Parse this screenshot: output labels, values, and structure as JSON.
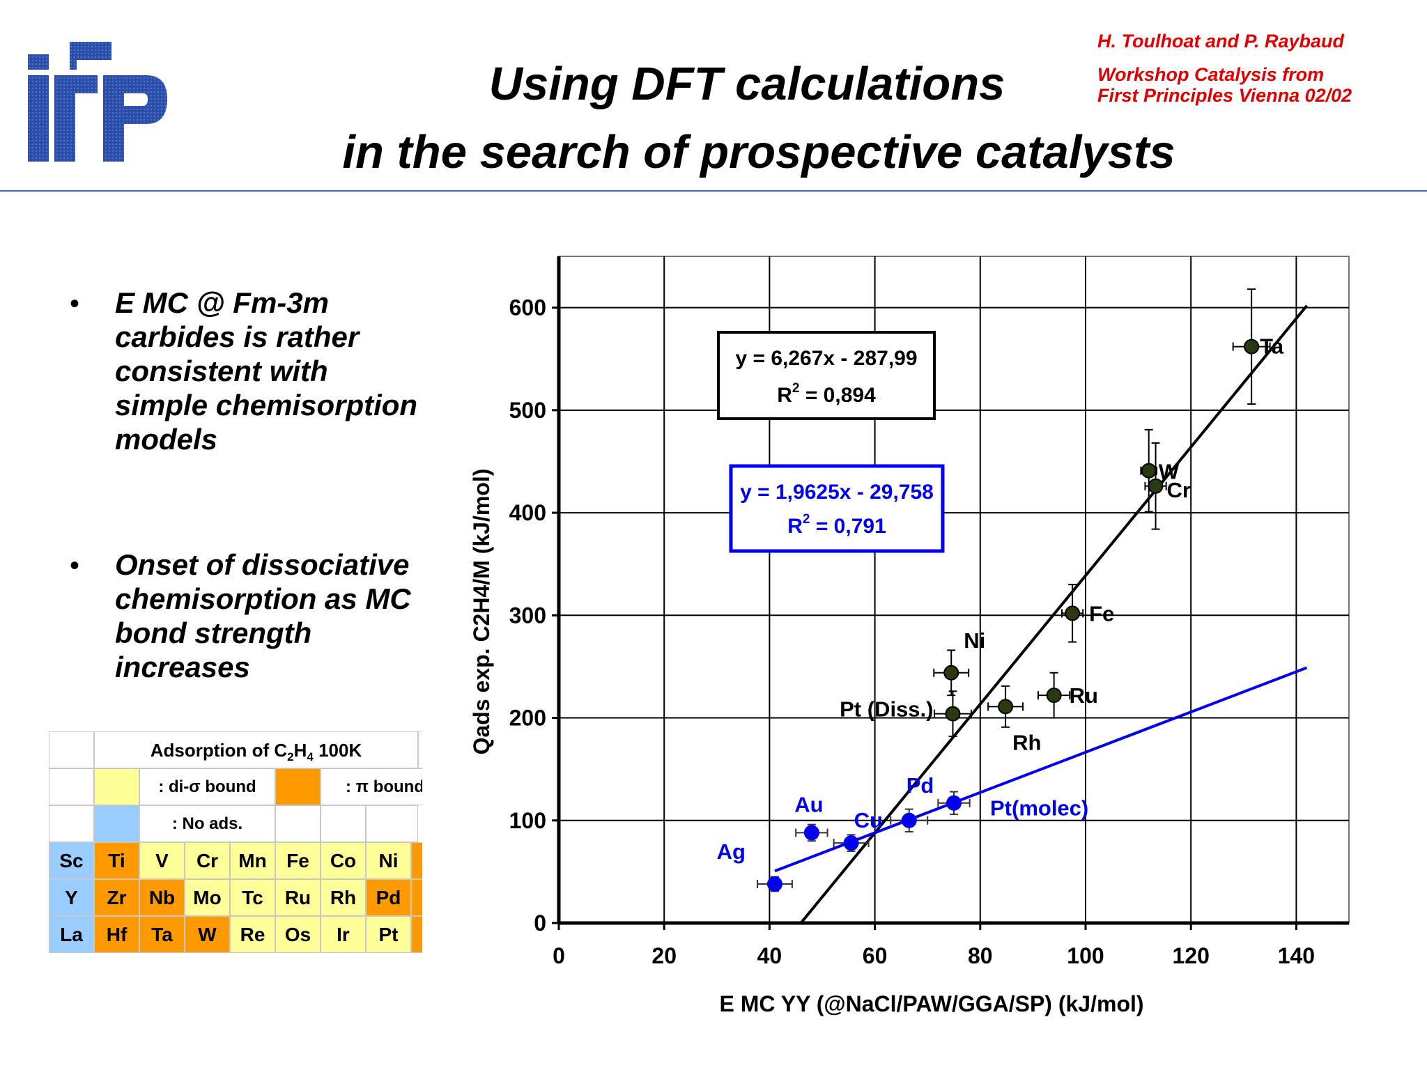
{
  "header": {
    "title_line1": "Using DFT calculations",
    "title_line2": "in the search of prospective catalysts",
    "authors": "H. Toulhoat and P. Raybaud",
    "event_line1": "Workshop Catalysis from",
    "event_line2": "First Principles Vienna  02/02",
    "logo_icon": "ifp-logo",
    "credit_color": "#e00000",
    "rule_color": "#3a66c8"
  },
  "bullets": [
    {
      "symbol": "•",
      "text": "E MC @ Fm-3m carbides is rather consistent with simple chemisorption models"
    },
    {
      "symbol": "•",
      "text": "Onset of dissociative chemisorption as MC bond strength increases"
    }
  ],
  "periodic_table": {
    "title_prefix": "Adsorption of C",
    "title_sub1": "2",
    "title_mid": "H",
    "title_sub2": "4",
    "title_suffix": " 100K",
    "legend_di_sigma": ": di-σ bound",
    "legend_pi": ": π bound",
    "legend_no_ads": ": No ads.",
    "colors": {
      "di_sigma": "#ffff99",
      "pi": "#ff9900",
      "no_ads": "#99ccff"
    },
    "rows": [
      [
        {
          "el": "Sc",
          "t": "no_ads"
        },
        {
          "el": "Ti",
          "t": "pi"
        },
        {
          "el": "V",
          "t": "di_sigma"
        },
        {
          "el": "Cr",
          "t": "di_sigma"
        },
        {
          "el": "Mn",
          "t": "di_sigma"
        },
        {
          "el": "Fe",
          "t": "di_sigma"
        },
        {
          "el": "Co",
          "t": "di_sigma"
        },
        {
          "el": "Ni",
          "t": "di_sigma"
        }
      ],
      [
        {
          "el": "Y",
          "t": "no_ads"
        },
        {
          "el": "Zr",
          "t": "pi"
        },
        {
          "el": "Nb",
          "t": "pi"
        },
        {
          "el": "Mo",
          "t": "di_sigma"
        },
        {
          "el": "Tc",
          "t": "di_sigma"
        },
        {
          "el": "Ru",
          "t": "di_sigma"
        },
        {
          "el": "Rh",
          "t": "di_sigma"
        },
        {
          "el": "Pd",
          "t": "pi"
        }
      ],
      [
        {
          "el": "La",
          "t": "no_ads"
        },
        {
          "el": "Hf",
          "t": "pi"
        },
        {
          "el": "Ta",
          "t": "pi"
        },
        {
          "el": "W",
          "t": "pi"
        },
        {
          "el": "Re",
          "t": "di_sigma"
        },
        {
          "el": "Os",
          "t": "di_sigma"
        },
        {
          "el": "Ir",
          "t": "di_sigma"
        },
        {
          "el": "Pt",
          "t": "di_sigma"
        }
      ]
    ]
  },
  "chart_data": {
    "type": "scatter",
    "xlabel": "E MC YY (@NaCl/PAW/GGA/SP) (kJ/mol)",
    "ylabel": "Qads exp. C2H4/M (kJ/mol)",
    "xlim": [
      0,
      150
    ],
    "ylim": [
      0,
      650
    ],
    "xticks": [
      0,
      20,
      40,
      60,
      80,
      100,
      120,
      140
    ],
    "yticks": [
      0,
      100,
      200,
      300,
      400,
      500,
      600
    ],
    "grid": true,
    "series": [
      {
        "color": "#2a3a10",
        "points": [
          {
            "label": "Ta",
            "x": 131.5,
            "y": 562,
            "xerr": 3.5,
            "yerr": 56
          },
          {
            "label": "W",
            "x": 112,
            "y": 441,
            "xerr": 1.5,
            "yerr": 40
          },
          {
            "label": "Cr",
            "x": 113.3,
            "y": 426,
            "xerr": 2,
            "yerr": 42
          },
          {
            "label": "Fe",
            "x": 97.5,
            "y": 302,
            "xerr": 2,
            "yerr": 28
          },
          {
            "label": "Ni",
            "x": 74.5,
            "y": 244,
            "xerr": 3.3,
            "yerr": 22
          },
          {
            "label": "Pt (Diss.)",
            "x": 74.8,
            "y": 204,
            "xerr": 3.5,
            "yerr": 22
          },
          {
            "label": "Rh",
            "x": 84.8,
            "y": 211,
            "xerr": 3.3,
            "yerr": 20
          },
          {
            "label": "Ru",
            "x": 94,
            "y": 222,
            "xerr": 3,
            "yerr": 22
          }
        ],
        "fit": {
          "equation": "y = 6,267x - 287,99",
          "r2_prefix": "R",
          "r2_sup": "2",
          "r2_value": " = 0,894",
          "slope": 6.267,
          "intercept": -287.99,
          "x_range": [
            46,
            142
          ]
        }
      },
      {
        "color": "#0000ee",
        "points": [
          {
            "label": "Ag",
            "x": 41,
            "y": 38,
            "xerr": 3.3,
            "yerr": 7
          },
          {
            "label": "Au",
            "x": 48,
            "y": 88,
            "xerr": 3,
            "yerr": 8
          },
          {
            "label": "Cu",
            "x": 55.5,
            "y": 78,
            "xerr": 3.3,
            "yerr": 8
          },
          {
            "label": "Pd",
            "x": 66.5,
            "y": 100,
            "xerr": 3.5,
            "yerr": 11
          },
          {
            "label": "Pt(molec)",
            "x": 75,
            "y": 117,
            "xerr": 3,
            "yerr": 11
          }
        ],
        "fit": {
          "equation": "y = 1,9625x - 29,758",
          "r2_prefix": "R",
          "r2_sup": "2",
          "r2_value": " = 0,791",
          "slope": 1.9625,
          "intercept": -29.758,
          "x_range": [
            41,
            142
          ]
        }
      }
    ]
  }
}
